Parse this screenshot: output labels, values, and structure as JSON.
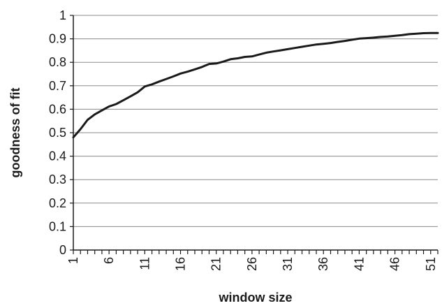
{
  "chart_data": {
    "type": "line",
    "title": "",
    "xlabel": "window size",
    "ylabel": "goodness of fit",
    "xlim": [
      1,
      52
    ],
    "ylim": [
      0,
      1
    ],
    "x_ticks": [
      1,
      6,
      11,
      16,
      21,
      26,
      31,
      36,
      41,
      46,
      51
    ],
    "y_ticks": [
      "0",
      "0.1",
      "0.2",
      "0.3",
      "0.4",
      "0.5",
      "0.6",
      "0.7",
      "0.8",
      "0.9",
      "1"
    ],
    "grid": "horizontal",
    "legend": "none",
    "line_color": "#1a1a1a",
    "series": [
      {
        "x": [
          1,
          2,
          3,
          4,
          5,
          6,
          7,
          8,
          9,
          10,
          11,
          12,
          13,
          14,
          15,
          16,
          17,
          18,
          19,
          20,
          21,
          22,
          23,
          24,
          25,
          26,
          27,
          28,
          29,
          30,
          31,
          32,
          33,
          34,
          35,
          36,
          37,
          38,
          39,
          40,
          41,
          42,
          43,
          44,
          45,
          46,
          47,
          48,
          49,
          50,
          51,
          52
        ],
        "values": [
          0.48,
          0.515,
          0.555,
          0.578,
          0.595,
          0.612,
          0.622,
          0.638,
          0.655,
          0.672,
          0.697,
          0.706,
          0.718,
          0.729,
          0.74,
          0.752,
          0.76,
          0.77,
          0.78,
          0.793,
          0.795,
          0.803,
          0.813,
          0.817,
          0.823,
          0.825,
          0.833,
          0.841,
          0.846,
          0.851,
          0.856,
          0.861,
          0.866,
          0.871,
          0.876,
          0.879,
          0.882,
          0.887,
          0.891,
          0.896,
          0.901,
          0.903,
          0.905,
          0.908,
          0.91,
          0.913,
          0.916,
          0.92,
          0.922,
          0.924,
          0.925,
          0.925
        ]
      }
    ]
  }
}
